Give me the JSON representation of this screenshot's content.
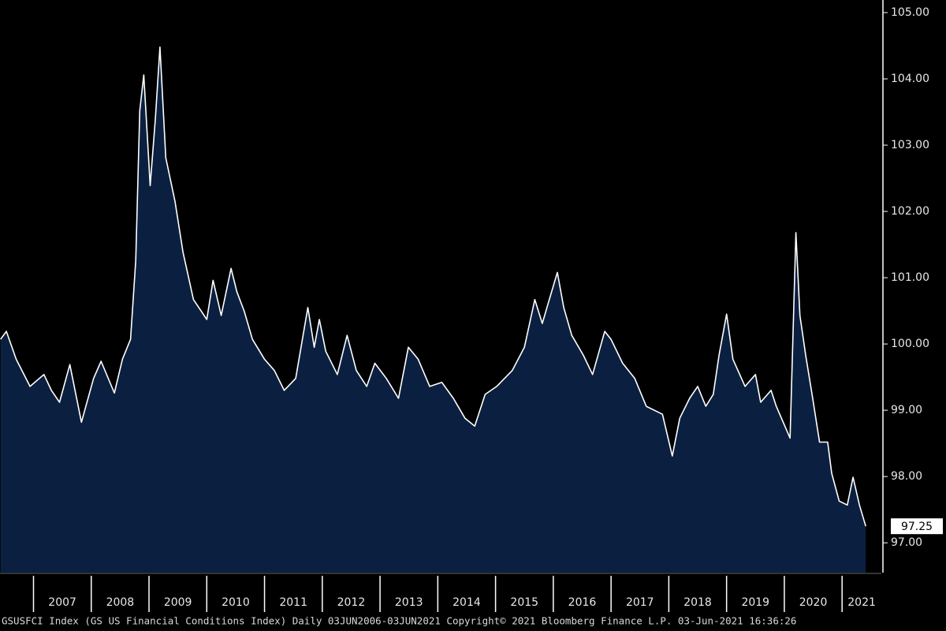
{
  "chart_data": {
    "type": "area",
    "footer": "GSUSFCI Index (GS US Financial Conditions Index)  Daily 03JUN2006-03JUN2021  Copyright© 2021 Bloomberg Finance L.P.  03-Jun-2021 16:36:26",
    "x": [
      2006.43,
      2006.53,
      2006.7,
      2006.94,
      2007.18,
      2007.31,
      2007.45,
      2007.63,
      2007.83,
      2008.04,
      2008.17,
      2008.4,
      2008.54,
      2008.68,
      2008.77,
      2008.84,
      2008.91,
      2009.02,
      2009.11,
      2009.19,
      2009.29,
      2009.45,
      2009.59,
      2009.77,
      2010.0,
      2010.11,
      2010.25,
      2010.42,
      2010.52,
      2010.65,
      2010.79,
      2011.0,
      2011.17,
      2011.34,
      2011.54,
      2011.75,
      2011.86,
      2011.95,
      2012.06,
      2012.26,
      2012.43,
      2012.59,
      2012.77,
      2012.91,
      2013.11,
      2013.32,
      2013.49,
      2013.66,
      2013.86,
      2014.07,
      2014.27,
      2014.47,
      2014.64,
      2014.82,
      2015.02,
      2015.29,
      2015.5,
      2015.68,
      2015.81,
      2015.91,
      2016.07,
      2016.18,
      2016.32,
      2016.52,
      2016.68,
      2016.89,
      2017.0,
      2017.2,
      2017.41,
      2017.61,
      2017.89,
      2018.06,
      2018.19,
      2018.36,
      2018.5,
      2018.64,
      2018.77,
      2018.87,
      2019.0,
      2019.11,
      2019.32,
      2019.5,
      2019.59,
      2019.77,
      2019.86,
      2020.1,
      2020.2,
      2020.27,
      2020.37,
      2020.48,
      2020.61,
      2020.75,
      2020.82,
      2020.95,
      2021.09,
      2021.19,
      2021.3,
      2021.41
    ],
    "series": [
      {
        "name": "GSUSFCI Index",
        "color": "#ffffff",
        "fill": "#0b2040",
        "values": [
          100.07,
          100.19,
          99.77,
          99.36,
          99.54,
          99.3,
          99.12,
          99.69,
          98.82,
          99.48,
          99.74,
          99.26,
          99.77,
          100.07,
          101.26,
          103.52,
          104.06,
          102.39,
          103.4,
          104.48,
          102.81,
          102.15,
          101.38,
          100.67,
          100.37,
          100.96,
          100.43,
          101.14,
          100.79,
          100.49,
          100.07,
          99.77,
          99.6,
          99.3,
          99.48,
          100.55,
          99.95,
          100.37,
          99.89,
          99.54,
          100.13,
          99.6,
          99.36,
          99.71,
          99.48,
          99.18,
          99.95,
          99.77,
          99.36,
          99.42,
          99.18,
          98.88,
          98.76,
          99.24,
          99.36,
          99.6,
          99.95,
          100.67,
          100.31,
          100.61,
          101.08,
          100.55,
          100.13,
          99.83,
          99.54,
          100.19,
          100.07,
          99.71,
          99.48,
          99.06,
          98.94,
          98.31,
          98.88,
          99.18,
          99.36,
          99.06,
          99.24,
          99.83,
          100.45,
          99.77,
          99.36,
          99.54,
          99.12,
          99.3,
          99.06,
          98.58,
          101.68,
          100.43,
          99.83,
          99.24,
          98.52,
          98.52,
          98.05,
          97.63,
          97.57,
          97.99,
          97.57,
          97.25
        ]
      }
    ],
    "xlim": [
      2006.42,
      2021.68
    ],
    "xticks": [
      2007,
      2008,
      2009,
      2010,
      2011,
      2012,
      2013,
      2014,
      2015,
      2016,
      2017,
      2018,
      2019,
      2020,
      2021
    ],
    "ylim": [
      96.55,
      105.19
    ],
    "yticks": [
      {
        "value": 97,
        "label": "97.00"
      },
      {
        "value": 98,
        "label": "98.00"
      },
      {
        "value": 99,
        "label": "99.00"
      },
      {
        "value": 100,
        "label": "100.00"
      },
      {
        "value": 101,
        "label": "101.00"
      },
      {
        "value": 102,
        "label": "102.00"
      },
      {
        "value": 103,
        "label": "103.00"
      },
      {
        "value": 104,
        "label": "104.00"
      },
      {
        "value": 105,
        "label": "105.00"
      }
    ]
  }
}
